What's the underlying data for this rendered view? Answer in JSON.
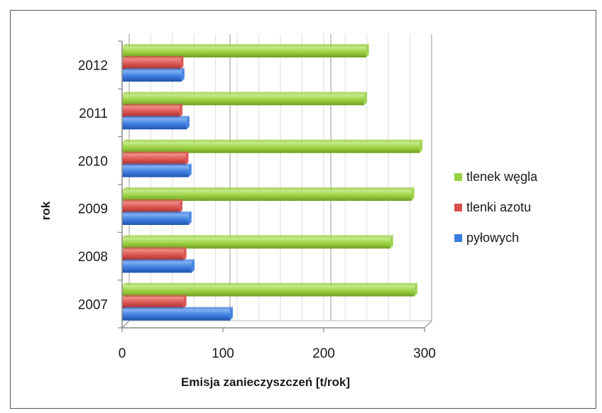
{
  "chart_data": {
    "type": "bar",
    "orientation": "horizontal",
    "categories": [
      "2007",
      "2008",
      "2009",
      "2010",
      "2011",
      "2012"
    ],
    "series": [
      {
        "name": "tlenek węgla",
        "color": "#9bd043",
        "values": [
          290,
          266,
          287,
          295,
          240,
          242
        ]
      },
      {
        "name": "tlenki azotu",
        "color": "#d9504c",
        "values": [
          61,
          61,
          57,
          63,
          57,
          58
        ]
      },
      {
        "name": "pyłowych",
        "color": "#3d7de0",
        "values": [
          107,
          69,
          66,
          66,
          64,
          59
        ]
      }
    ],
    "xlabel": "Emisja zanieczyszczeń [t/rok]",
    "ylabel": "rok",
    "xlim": [
      0,
      300
    ],
    "xticks": [
      "0",
      "100",
      "200",
      "300"
    ],
    "grid": true,
    "style": "3d",
    "legend_position": "right"
  }
}
